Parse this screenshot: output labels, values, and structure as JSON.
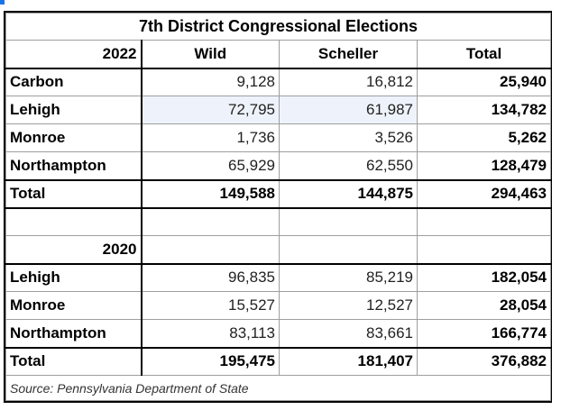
{
  "title": "7th District Congressional Elections",
  "header_2022": {
    "year": "2022",
    "col1": "Wild",
    "col2": "Scheller",
    "col3": "Total"
  },
  "rows_2022": [
    {
      "county": "Carbon",
      "wild": "9,128",
      "scheller": "16,812",
      "total": "25,940"
    },
    {
      "county": "Lehigh",
      "wild": "72,795",
      "scheller": "61,987",
      "total": "134,782"
    },
    {
      "county": "Monroe",
      "wild": "1,736",
      "scheller": "3,526",
      "total": "5,262"
    },
    {
      "county": "Northampton",
      "wild": "65,929",
      "scheller": "62,550",
      "total": "128,479"
    },
    {
      "county": "Total",
      "wild": "149,588",
      "scheller": "144,875",
      "total": "294,463"
    }
  ],
  "header_2020": {
    "year": "2020"
  },
  "rows_2020": [
    {
      "county": "Lehigh",
      "wild": "96,835",
      "scheller": "85,219",
      "total": "182,054"
    },
    {
      "county": "Monroe",
      "wild": "15,527",
      "scheller": "12,527",
      "total": "28,054"
    },
    {
      "county": "Northampton",
      "wild": "83,113",
      "scheller": "83,661",
      "total": "166,774"
    },
    {
      "county": "Total",
      "wild": "195,475",
      "scheller": "181,407",
      "total": "376,882"
    }
  ],
  "source": "Source: Pennsylvania Department of State",
  "colors": {
    "selection_marker": "#1a73e8",
    "highlight_row": "#eef3fb"
  }
}
